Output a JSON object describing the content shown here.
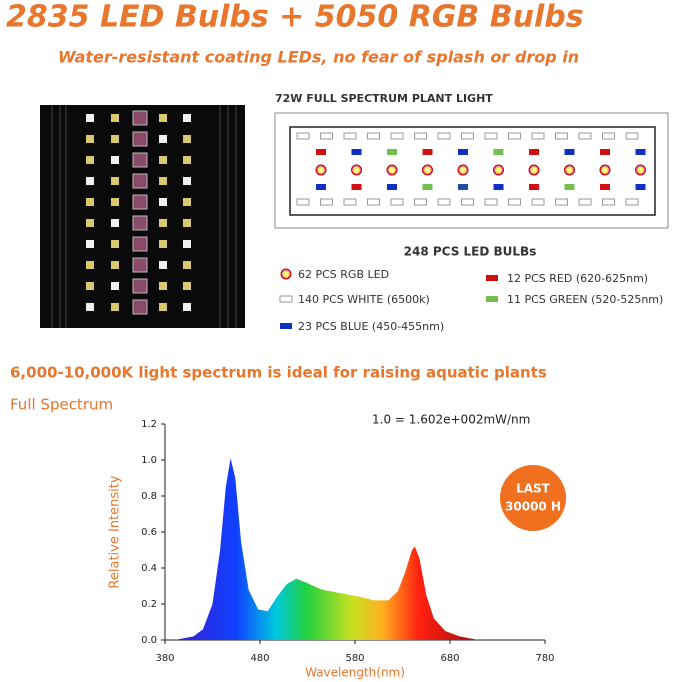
{
  "header": {
    "title": "2835 LED Bulbs + 5050 RGB Bulbs",
    "subtitle": "Water-resistant coating LEDs, no fear of splash or drop in"
  },
  "diagram": {
    "title": "72W FULL SPECTRUM PLANT LIGHT",
    "count_title": "248 PCS LED BULBs",
    "legend": [
      {
        "label": "62 PCS RGB LED"
      },
      {
        "label": "140 PCS WHITE (6500k)"
      },
      {
        "label": "23 PCS BLUE (450-455nm)"
      },
      {
        "label": "12 PCS RED (620-625nm)"
      },
      {
        "label": "11 PCS GREEN (520-525nm)"
      }
    ]
  },
  "spectrum_heading": "6,000-10,000K light spectrum is ideal for raising aquatic plants",
  "chart_data": {
    "type": "area",
    "title": "Full Spectrum",
    "note": "1.0 = 1.602e+002mW/nm",
    "badge": [
      "LAST",
      "30000 H"
    ],
    "xlabel": "Wavelength(nm)",
    "ylabel": "Relative Intensity",
    "x": [
      390,
      410,
      420,
      430,
      438,
      444,
      449,
      454,
      460,
      468,
      478,
      488,
      498,
      508,
      518,
      528,
      545,
      565,
      585,
      600,
      615,
      625,
      633,
      640,
      643,
      648,
      655,
      663,
      675,
      690,
      710
    ],
    "values": [
      0,
      0.02,
      0.06,
      0.2,
      0.5,
      0.85,
      1.01,
      0.9,
      0.55,
      0.28,
      0.17,
      0.16,
      0.24,
      0.31,
      0.34,
      0.32,
      0.28,
      0.26,
      0.24,
      0.22,
      0.22,
      0.27,
      0.38,
      0.5,
      0.52,
      0.45,
      0.25,
      0.12,
      0.05,
      0.02,
      0
    ],
    "xlim": [
      380,
      780
    ],
    "ylim": [
      0,
      1.2
    ],
    "xticks": [
      380,
      480,
      580,
      680,
      780
    ],
    "yticks": [
      {
        "value": 0,
        "label": "0.0"
      },
      {
        "value": 0.2,
        "label": "0.2"
      },
      {
        "value": 0.4,
        "label": "0.4"
      },
      {
        "value": 0.6,
        "label": "0.6"
      },
      {
        "value": 0.8,
        "label": "0.8"
      },
      {
        "value": 1.0,
        "label": "1.0"
      },
      {
        "value": 1.2,
        "label": "1.2"
      }
    ]
  }
}
